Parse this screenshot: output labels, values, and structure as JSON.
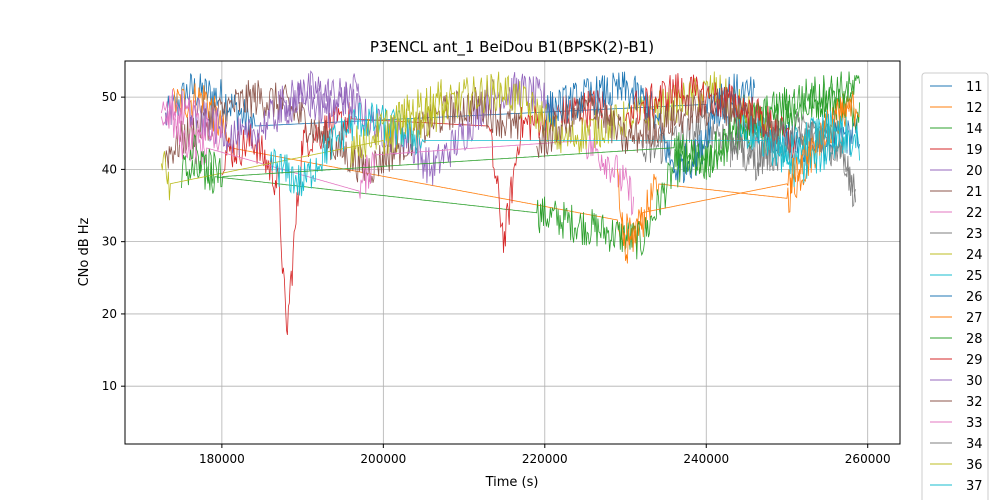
{
  "chart_data": {
    "type": "line",
    "title": "P3ENCL ant_1 BeiDou B1(BPSK(2)-B1)",
    "xlabel": "Time (s)",
    "ylabel": "CNo dB Hz",
    "xlim": [
      168000,
      264000
    ],
    "ylim": [
      2,
      55
    ],
    "xticks": [
      180000,
      200000,
      220000,
      240000,
      260000
    ],
    "xtick_labels": [
      "180000",
      "200000",
      "220000",
      "240000",
      "260000"
    ],
    "yticks": [
      10,
      20,
      30,
      40,
      50
    ],
    "ytick_labels": [
      "10",
      "20",
      "30",
      "40",
      "50"
    ],
    "grid": true,
    "legend_position": "outside-right",
    "series": [
      {
        "name": "11",
        "color": "#1f77b4",
        "x": [
          173000,
          176000,
          180000,
          184000,
          240000,
          244000,
          248000,
          252000,
          256000,
          259000
        ],
        "y": [
          47,
          51,
          50,
          46,
          49,
          47,
          45,
          43,
          44,
          45
        ]
      },
      {
        "name": "12",
        "color": "#ff7f0e",
        "x": [
          174000,
          178000,
          181000,
          229000,
          231000,
          234000,
          250000,
          253000,
          256000,
          258000
        ],
        "y": [
          49,
          50,
          43,
          33,
          30,
          38,
          36,
          42,
          47,
          49
        ]
      },
      {
        "name": "14",
        "color": "#2ca02c",
        "x": [
          175000,
          179000,
          219000,
          232000,
          236000,
          241000,
          245000,
          251000,
          255000,
          259000
        ],
        "y": [
          40,
          39,
          34,
          30,
          40,
          42,
          45,
          48,
          50,
          48
        ]
      },
      {
        "name": "19",
        "color": "#d62728",
        "x": [
          180000,
          184000,
          187000,
          188000,
          190000,
          196000,
          213000,
          215000,
          217000,
          223000,
          228000
        ],
        "y": [
          42,
          44,
          38,
          17,
          44,
          47,
          46,
          30,
          46,
          48,
          49
        ]
      },
      {
        "name": "20",
        "color": "#9467bd",
        "x": [
          187000,
          191000,
          195000,
          199000,
          203000,
          206000,
          210000,
          213000,
          217000,
          221000
        ],
        "y": [
          49,
          51,
          50,
          46,
          44,
          40,
          45,
          50,
          51,
          49
        ]
      },
      {
        "name": "21",
        "color": "#8c564b",
        "x": [
          173000,
          176000,
          180000,
          184000,
          188000,
          193000,
          198000,
          203000,
          208000,
          212000,
          217000
        ],
        "y": [
          42,
          45,
          48,
          50,
          49,
          44,
          40,
          44,
          48,
          49,
          45
        ]
      },
      {
        "name": "22",
        "color": "#e377c2",
        "x": [
          172500,
          175000,
          178000,
          197000,
          199000,
          225000,
          228000,
          231000
        ],
        "y": [
          50,
          44,
          43,
          37,
          42,
          44,
          41,
          36
        ]
      },
      {
        "name": "23",
        "color": "#7f7f7f",
        "x": [
          232000,
          236000,
          240000,
          244000,
          248000,
          252000,
          256000,
          258500
        ],
        "y": [
          42,
          44,
          46,
          44,
          42,
          44,
          46,
          36
        ]
      },
      {
        "name": "24",
        "color": "#bcbd22",
        "x": [
          172500,
          173500,
          200000,
          205000,
          210000,
          215000,
          220000,
          222000,
          236000,
          241000,
          246000,
          249000
        ],
        "y": [
          41,
          38,
          44,
          47,
          50,
          51,
          47,
          44,
          49,
          51,
          47,
          42
        ]
      },
      {
        "name": "25",
        "color": "#17becf",
        "x": [
          186000,
          190000,
          193000,
          197000,
          201000,
          205000,
          248000,
          251000,
          254000,
          257000
        ],
        "y": [
          41,
          38,
          43,
          47,
          46,
          44,
          44,
          40,
          42,
          44
        ]
      },
      {
        "name": "26",
        "color": "#1f77b4",
        "x": [
          220000,
          225000,
          230000,
          233000,
          236000,
          239000,
          242000,
          246000
        ],
        "y": [
          48,
          50,
          51,
          49,
          40,
          42,
          51,
          50
        ]
      },
      {
        "name": "27",
        "color": "#ff7f0e",
        "x": [
          229000,
          230000,
          232000,
          250000,
          252000,
          256000,
          259000
        ],
        "y": [
          38,
          28,
          34,
          38,
          42,
          47,
          49
        ]
      },
      {
        "name": "28",
        "color": "#2ca02c",
        "x": [
          176000,
          180000,
          236000,
          240000,
          244000,
          248000,
          252000,
          256000,
          259000
        ],
        "y": [
          43,
          39,
          43,
          41,
          46,
          48,
          50,
          51,
          51
        ]
      },
      {
        "name": "29",
        "color": "#d62728",
        "x": [
          230000,
          233000,
          236000,
          240000,
          244000,
          248000,
          251000
        ],
        "y": [
          48,
          49,
          51,
          50,
          49,
          46,
          43
        ]
      },
      {
        "name": "30",
        "color": "#9467bd",
        "x": [
          176000,
          179000,
          183000,
          186000,
          190000,
          193000,
          197000
        ],
        "y": [
          48,
          46,
          44,
          47,
          50,
          48,
          51
        ]
      },
      {
        "name": "32",
        "color": "#8c564b",
        "x": [
          219000,
          223000,
          226000,
          230000,
          234000,
          238000,
          242000,
          246000,
          249000
        ],
        "y": [
          43,
          47,
          49,
          44,
          46,
          48,
          49,
          47,
          45
        ]
      },
      {
        "name": "33",
        "color": "#e377c2",
        "x": [
          172500,
          174000,
          177000,
          180000
        ],
        "y": [
          48,
          49,
          47,
          45
        ]
      },
      {
        "name": "34",
        "color": "#7f7f7f",
        "x": [
          243000,
          246000,
          249000,
          252000,
          255000,
          258500
        ],
        "y": [
          43,
          41,
          44,
          46,
          44,
          38
        ]
      },
      {
        "name": "36",
        "color": "#bcbd22",
        "x": [
          196000,
          199000,
          202000,
          205000,
          208000
        ],
        "y": [
          43,
          45,
          47,
          49,
          50
        ]
      },
      {
        "name": "37",
        "color": "#17becf",
        "x": [
          244000,
          247000,
          250000,
          253000,
          256000,
          259000
        ],
        "y": [
          46,
          44,
          42,
          45,
          46,
          43
        ]
      }
    ]
  }
}
